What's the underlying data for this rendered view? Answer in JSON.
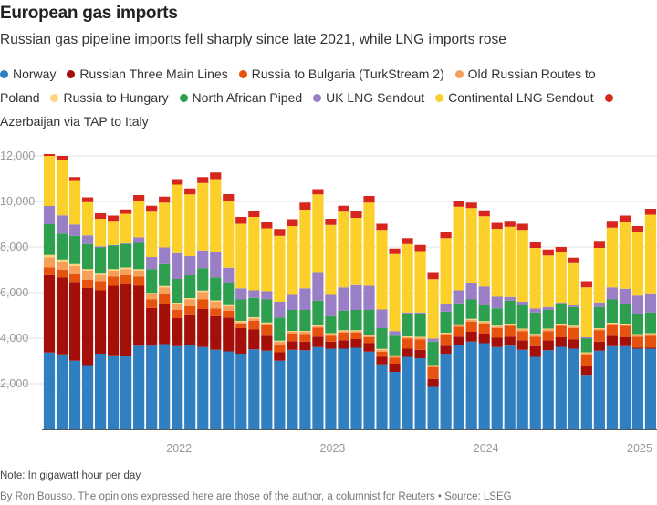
{
  "chart_data": {
    "type": "bar",
    "stacked": true,
    "title": "European gas imports",
    "subtitle": "Russian gas pipeline imports fell sharply since late 2021, while LNG imports rose",
    "ylim": [
      0,
      12000
    ],
    "yticks": [
      "2,000",
      "4,000",
      "6,000",
      "8,000",
      "10,000",
      "12,000"
    ],
    "ytick_values": [
      2000,
      4000,
      6000,
      8000,
      10000,
      12000
    ],
    "xtick_labels": [
      "2022",
      "2023",
      "2024",
      "2025"
    ],
    "xtick_categories": [
      "2022-01",
      "2023-01",
      "2024-01",
      "2025-01"
    ],
    "grid": true,
    "legend_placement": "top",
    "categories": [
      "2021-03",
      "2021-04",
      "2021-05",
      "2021-06",
      "2021-07",
      "2021-08",
      "2021-09",
      "2021-10",
      "2021-11",
      "2021-12",
      "2022-01",
      "2022-02",
      "2022-03",
      "2022-04",
      "2022-05",
      "2022-06",
      "2022-07",
      "2022-08",
      "2022-09",
      "2022-10",
      "2022-11",
      "2022-12",
      "2023-01",
      "2023-02",
      "2023-03",
      "2023-04",
      "2023-05",
      "2023-06",
      "2023-07",
      "2023-08",
      "2023-09",
      "2023-10",
      "2023-11",
      "2023-12",
      "2024-01",
      "2024-02",
      "2024-03",
      "2024-04",
      "2024-05",
      "2024-06",
      "2024-07",
      "2024-08",
      "2024-09",
      "2024-10",
      "2024-11",
      "2024-12",
      "2025-01",
      "2025-02"
    ],
    "series": [
      {
        "name": "Norway",
        "color": "#2f7fc1",
        "values": [
          3370,
          3290,
          3010,
          2820,
          3320,
          3250,
          3210,
          3670,
          3670,
          3740,
          3650,
          3690,
          3610,
          3490,
          3420,
          3320,
          3510,
          3450,
          3010,
          3490,
          3470,
          3610,
          3540,
          3540,
          3580,
          3410,
          2850,
          2520,
          3180,
          3120,
          1860,
          3320,
          3710,
          3850,
          3780,
          3610,
          3670,
          3490,
          3180,
          3470,
          3620,
          3540,
          2390,
          3450,
          3650,
          3650,
          3540,
          3540
        ]
      },
      {
        "name": "Russian Three Main Lines",
        "color": "#a50f0a",
        "values": [
          3400,
          3370,
          3460,
          3380,
          2780,
          3050,
          3150,
          2630,
          1660,
          1760,
          1230,
          1320,
          1670,
          1480,
          1490,
          1120,
          870,
          660,
          370,
          380,
          380,
          460,
          310,
          370,
          380,
          370,
          330,
          360,
          360,
          370,
          350,
          350,
          360,
          430,
          420,
          410,
          400,
          420,
          470,
          440,
          420,
          400,
          400,
          400,
          460,
          390,
          40,
          40
        ]
      },
      {
        "name": "Russia to Bulgaria (TurkStream 2)",
        "color": "#e5530f",
        "values": [
          330,
          340,
          330,
          360,
          400,
          400,
          400,
          400,
          370,
          430,
          360,
          390,
          420,
          340,
          290,
          200,
          390,
          460,
          330,
          330,
          330,
          400,
          260,
          330,
          280,
          260,
          230,
          260,
          440,
          450,
          510,
          480,
          440,
          450,
          440,
          420,
          480,
          400,
          420,
          400,
          510,
          500,
          490,
          490,
          460,
          510,
          490,
          530
        ]
      },
      {
        "name": "Old Russian Routes to Poland",
        "color": "#f7a05a",
        "values": [
          450,
          360,
          360,
          400,
          260,
          260,
          270,
          260,
          230,
          300,
          260,
          300,
          330,
          290,
          200,
          70,
          100,
          70,
          140,
          80,
          100,
          60,
          70,
          70,
          70,
          70,
          80,
          70,
          60,
          80,
          60,
          50,
          60,
          80,
          70,
          70,
          50,
          70,
          80,
          70,
          50,
          70,
          60,
          60,
          70,
          50,
          70,
          70
        ]
      },
      {
        "name": "Russia to Hungary",
        "color": "#fcd581",
        "values": [
          100,
          90,
          90,
          70,
          70,
          70,
          70,
          70,
          60,
          60,
          60,
          60,
          60,
          60,
          50,
          50,
          50,
          50,
          40,
          40,
          40,
          40,
          40,
          40,
          40,
          40,
          40,
          40,
          40,
          40,
          40,
          40,
          40,
          40,
          40,
          40,
          40,
          40,
          40,
          40,
          40,
          40,
          40,
          40,
          40,
          40,
          40,
          40
        ]
      },
      {
        "name": "North African Piped",
        "color": "#2e9e4f",
        "values": [
          1350,
          1140,
          1240,
          1100,
          1150,
          1030,
          1030,
          1150,
          1040,
          960,
          1040,
          1000,
          980,
          1010,
          980,
          940,
          850,
          1010,
          1020,
          920,
          920,
          1080,
          750,
          860,
          890,
          1090,
          910,
          860,
          960,
          980,
          1030,
          930,
          920,
          850,
          690,
          760,
          1010,
          1020,
          940,
          820,
          890,
          820,
          600,
          930,
          1020,
          860,
          860,
          910
        ]
      },
      {
        "name": "UK LNG Sendout",
        "color": "#9a7fc7",
        "values": [
          800,
          800,
          500,
          380,
          50,
          30,
          30,
          240,
          530,
          730,
          1130,
          840,
          780,
          1130,
          660,
          490,
          330,
          360,
          690,
          660,
          950,
          1250,
          930,
          1020,
          1090,
          1060,
          820,
          200,
          90,
          90,
          130,
          310,
          570,
          700,
          830,
          510,
          160,
          170,
          170,
          130,
          30,
          70,
          60,
          200,
          530,
          670,
          830,
          840
        ]
      },
      {
        "name": "Continental LNG Sendout",
        "color": "#fcd02a",
        "values": [
          2200,
          2450,
          1910,
          1460,
          1210,
          1060,
          1300,
          1620,
          1990,
          1970,
          3010,
          2710,
          2960,
          3180,
          2950,
          2830,
          3220,
          2760,
          2890,
          3020,
          3450,
          3410,
          3070,
          3320,
          2950,
          3650,
          3490,
          3380,
          3000,
          2690,
          2610,
          2910,
          3670,
          3310,
          3080,
          2980,
          3080,
          3140,
          2660,
          2260,
          2200,
          1890,
          2190,
          2390,
          2620,
          2910,
          2790,
          3450
        ]
      },
      {
        "name": "Azerbaijan via TAP to Italy",
        "color": "#d7261e",
        "values": [
          80,
          160,
          170,
          210,
          240,
          230,
          190,
          240,
          260,
          260,
          240,
          260,
          260,
          290,
          280,
          300,
          270,
          260,
          300,
          300,
          310,
          230,
          270,
          260,
          290,
          290,
          270,
          240,
          260,
          270,
          310,
          270,
          270,
          240,
          260,
          260,
          260,
          270,
          260,
          260,
          240,
          200,
          270,
          310,
          300,
          300,
          260,
          260
        ]
      }
    ]
  },
  "footer": {
    "note": "Note: In gigawatt hour per day",
    "byline": "By Ron Bousso. The opinions expressed here are those of the author, a columnist for Reuters • Source: LSEG"
  }
}
